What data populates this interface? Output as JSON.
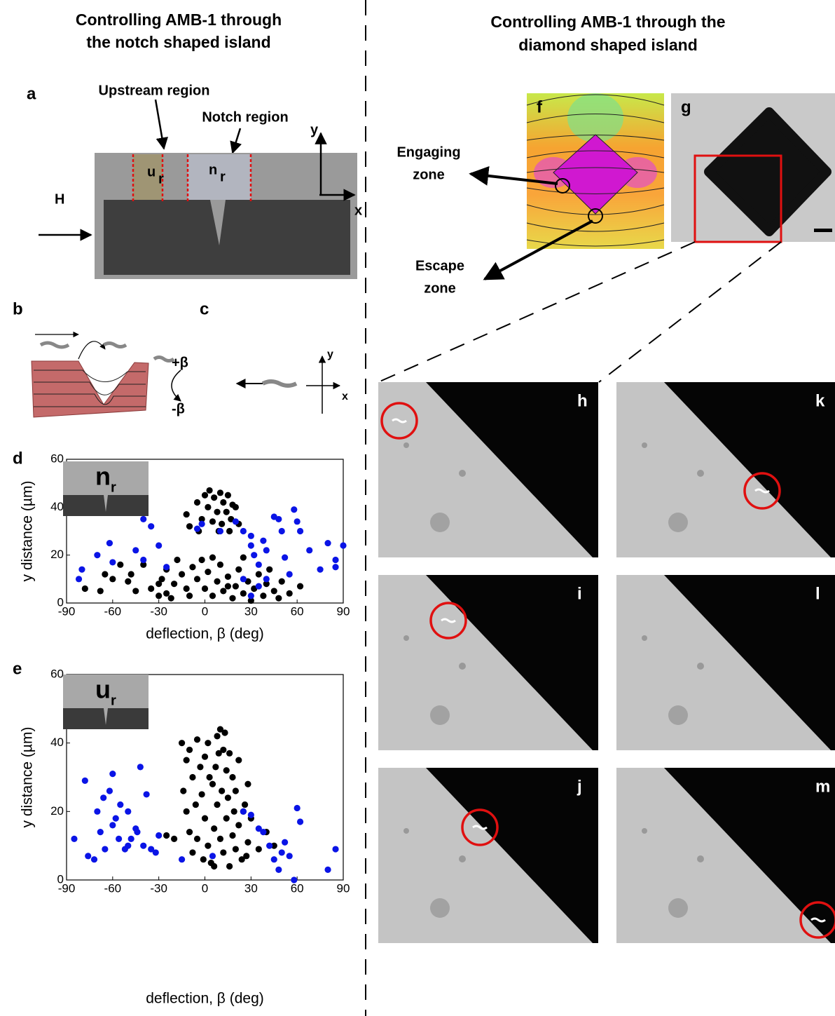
{
  "titles": {
    "left": [
      "Controlling AMB-1 through",
      "the notch shaped island"
    ],
    "right": [
      "Controlling AMB-1 through the",
      "diamond shaped island"
    ]
  },
  "panel_a": {
    "label": "a",
    "upstream": "Upstream region",
    "notch": "Notch region",
    "u": "u",
    "u_sub": "r",
    "n": "n",
    "n_sub": "r",
    "axis_y": "y",
    "axis_x": "x",
    "field": "H"
  },
  "panel_b": {
    "label": "b"
  },
  "panel_c": {
    "label": "c",
    "plus_beta": "+β",
    "minus_beta": "-β",
    "axis_y": "y",
    "axis_x": "x"
  },
  "panel_f": {
    "label": "f",
    "engaging": [
      "Engaging",
      "zone"
    ],
    "escape": [
      "Escape",
      "zone"
    ]
  },
  "panel_g": {
    "label": "g"
  },
  "frames": [
    "h",
    "i",
    "j",
    "k",
    "l",
    "m"
  ],
  "chart_data": [
    {
      "type": "scatter",
      "panel_label": "d",
      "inset": "n",
      "inset_sub": "r",
      "x_label": "deflection, β (deg)",
      "y_label": "y distance (µm)",
      "xlim": [
        -90,
        90
      ],
      "ylim": [
        0,
        60
      ],
      "xticks": [
        -90,
        -60,
        -30,
        0,
        30,
        60,
        90
      ],
      "yticks": [
        0,
        20,
        40,
        60
      ],
      "series": [
        {
          "color": "#000000",
          "x": [
            0,
            3,
            6,
            10,
            12,
            15,
            18,
            2,
            8,
            14,
            20,
            -5,
            -2,
            5,
            11,
            17,
            -10,
            -4,
            9,
            16,
            22,
            -12,
            -78,
            -65,
            -60,
            -55,
            -50,
            -45,
            -40,
            -35,
            -30,
            -28,
            -25,
            -22,
            -20,
            -18,
            -15,
            -12,
            -10,
            -8,
            -5,
            -2,
            0,
            2,
            5,
            8,
            10,
            12,
            15,
            18,
            20,
            22,
            25,
            28,
            30,
            32,
            35,
            38,
            40,
            42,
            45,
            48,
            50,
            55,
            62,
            -30,
            -25,
            5,
            25,
            -68,
            -48,
            15
          ],
          "values": [
            45,
            47,
            44,
            46,
            42,
            45,
            41,
            40,
            38,
            38,
            40,
            42,
            35,
            34,
            33,
            35,
            32,
            30,
            30,
            30,
            33,
            37,
            6,
            12,
            10,
            16,
            9,
            5,
            16,
            6,
            3,
            10,
            14,
            2,
            8,
            18,
            12,
            6,
            3,
            15,
            10,
            18,
            6,
            13,
            3,
            9,
            16,
            5,
            11,
            2,
            7,
            14,
            4,
            9,
            1,
            6,
            12,
            3,
            8,
            14,
            5,
            2,
            9,
            4,
            7,
            8,
            4,
            19,
            19,
            5,
            12,
            7
          ]
        },
        {
          "color": "#0a14e6",
          "x": [
            -82,
            -80,
            -70,
            -62,
            -60,
            -45,
            -40,
            -35,
            -30,
            -25,
            -5,
            -2,
            10,
            20,
            25,
            30,
            30,
            32,
            35,
            38,
            40,
            45,
            50,
            52,
            55,
            58,
            60,
            62,
            68,
            75,
            80,
            85,
            85,
            90,
            30,
            35,
            25,
            -40,
            48,
            40
          ],
          "values": [
            10,
            14,
            20,
            25,
            17,
            22,
            35,
            32,
            24,
            15,
            31,
            33,
            30,
            34,
            30,
            28,
            24,
            20,
            16,
            26,
            10,
            36,
            30,
            19,
            12,
            39,
            34,
            30,
            22,
            14,
            25,
            18,
            15,
            24,
            3,
            7,
            10,
            18,
            35,
            22
          ]
        }
      ]
    },
    {
      "type": "scatter",
      "panel_label": "e",
      "inset": "u",
      "inset_sub": "r",
      "x_label": "deflection, β (deg)",
      "y_label": "y distance (µm)",
      "xlim": [
        -90,
        90
      ],
      "ylim": [
        0,
        60
      ],
      "xticks": [
        -90,
        -60,
        -30,
        0,
        30,
        60,
        90
      ],
      "yticks": [
        0,
        20,
        40,
        60
      ],
      "series": [
        {
          "color": "#000000",
          "x": [
            -15,
            -12,
            -10,
            -8,
            -5,
            -3,
            0,
            2,
            5,
            8,
            10,
            12,
            14,
            16,
            18,
            20,
            22,
            25,
            28,
            -12,
            -10,
            -8,
            -5,
            -2,
            0,
            2,
            4,
            6,
            8,
            10,
            12,
            14,
            16,
            18,
            20,
            22,
            24,
            26,
            28,
            30,
            35,
            40,
            45,
            -20,
            -25,
            3,
            7,
            11,
            15,
            19,
            -6,
            -1,
            13,
            9,
            -14,
            27,
            6
          ],
          "values": [
            40,
            35,
            38,
            30,
            41,
            33,
            36,
            40,
            28,
            42,
            44,
            38,
            32,
            37,
            30,
            26,
            35,
            20,
            28,
            20,
            14,
            8,
            12,
            25,
            18,
            10,
            5,
            15,
            22,
            12,
            8,
            18,
            4,
            13,
            9,
            16,
            6,
            22,
            11,
            18,
            9,
            14,
            10,
            12,
            13,
            30,
            33,
            26,
            24,
            20,
            22,
            6,
            43,
            37,
            26,
            7,
            4
          ]
        },
        {
          "color": "#0a14e6",
          "x": [
            -85,
            -78,
            -76,
            -72,
            -70,
            -68,
            -65,
            -62,
            -60,
            -58,
            -56,
            -55,
            -52,
            -50,
            -48,
            -45,
            -42,
            -40,
            -38,
            -35,
            -32,
            -30,
            -60,
            -66,
            -50,
            -44,
            -15,
            5,
            25,
            30,
            35,
            38,
            42,
            45,
            48,
            50,
            52,
            55,
            58,
            60,
            62,
            80,
            85
          ],
          "values": [
            12,
            29,
            7,
            6,
            20,
            14,
            9,
            26,
            31,
            18,
            12,
            22,
            9,
            20,
            12,
            15,
            33,
            10,
            25,
            9,
            8,
            13,
            16,
            24,
            10,
            14,
            6,
            7,
            20,
            19,
            15,
            14,
            10,
            6,
            3,
            8,
            11,
            7,
            0,
            21,
            17,
            3,
            9
          ]
        }
      ]
    }
  ]
}
